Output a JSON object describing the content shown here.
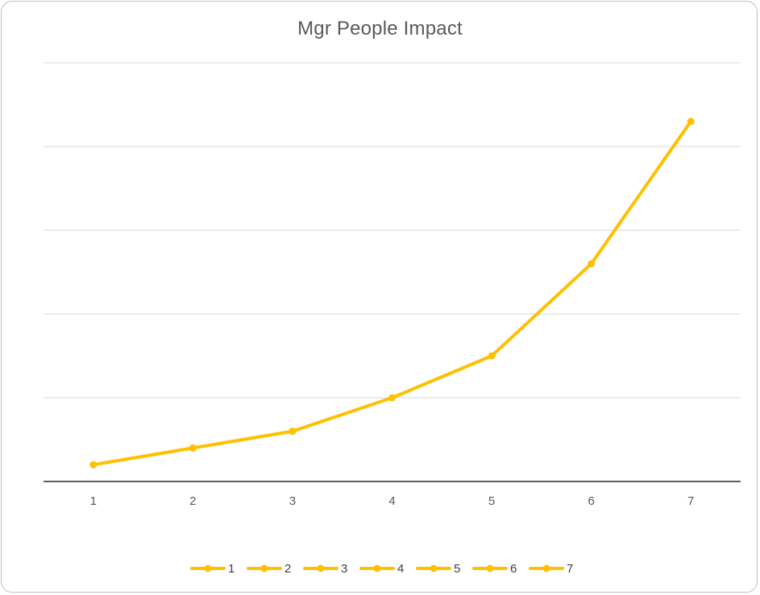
{
  "chart_data": {
    "type": "line",
    "title": "Mgr People Impact",
    "xlabel": "",
    "ylabel": "",
    "categories": [
      "1",
      "2",
      "3",
      "4",
      "5",
      "6",
      "7"
    ],
    "series": [
      {
        "values": [
          0.2,
          0.4,
          0.6,
          1.0,
          1.5,
          2.6,
          4.3
        ]
      }
    ],
    "ylim": [
      0,
      5
    ],
    "y_gridlines": [
      0,
      1,
      2,
      3,
      4,
      5
    ],
    "y_tick_labels_visible": false,
    "grid": true,
    "legend": {
      "position": "bottom",
      "entries": [
        "1",
        "2",
        "3",
        "4",
        "5",
        "6",
        "7"
      ]
    },
    "colors": {
      "series": "#FFC000",
      "grid": "#d9d9d9",
      "axis": "#000000",
      "text": "#595959"
    }
  }
}
